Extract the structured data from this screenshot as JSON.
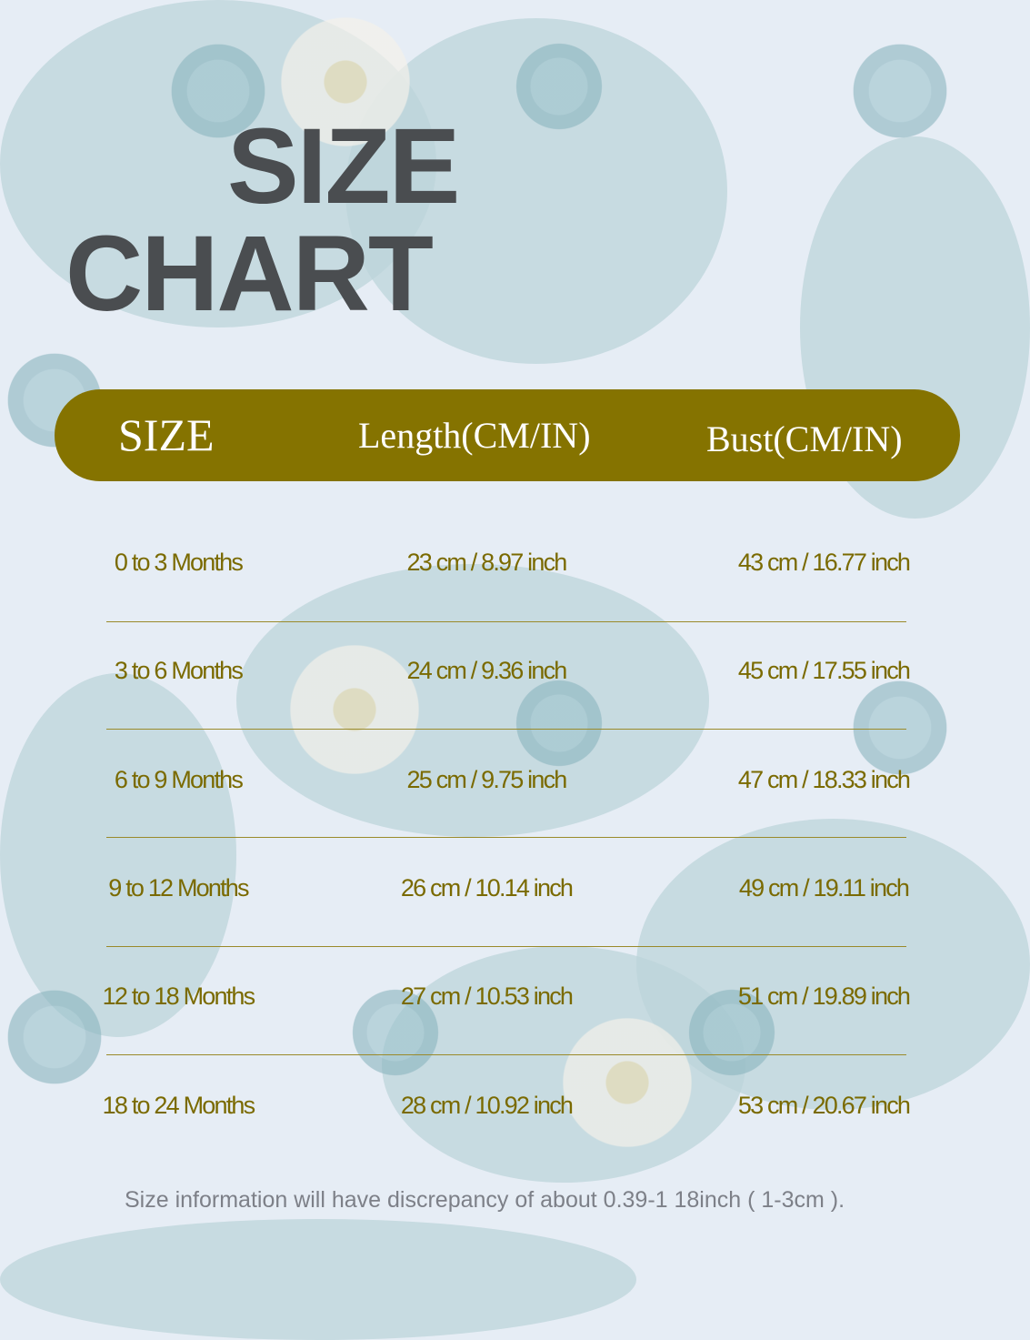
{
  "title": {
    "line1": "SIZE",
    "line2": "CHART"
  },
  "colors": {
    "header_bg": "#857300",
    "text": "#7a6a00",
    "title": "#4a4d50",
    "background": "#e6edf5"
  },
  "table": {
    "headers": [
      "SIZE",
      "Length(CM/IN)",
      "Bust(CM/IN)"
    ],
    "rows": [
      [
        "0 to 3 Months",
        "23 cm / 8.97 inch",
        "43 cm / 16.77 inch"
      ],
      [
        "3 to 6 Months",
        "24 cm / 9.36 inch",
        "45 cm / 17.55 inch"
      ],
      [
        "6 to 9 Months",
        "25 cm / 9.75 inch",
        "47 cm / 18.33 inch"
      ],
      [
        "9 to 12 Months",
        "26 cm / 10.14 inch",
        "49 cm / 19.11 inch"
      ],
      [
        "12 to 18 Months",
        "27 cm / 10.53 inch",
        "51 cm / 19.89 inch"
      ],
      [
        "18 to 24 Months",
        "28 cm / 10.92 inch",
        "53 cm / 20.67 inch"
      ]
    ]
  },
  "note": "Size information will have discrepancy of about 0.39-1 18inch ( 1-3cm )."
}
